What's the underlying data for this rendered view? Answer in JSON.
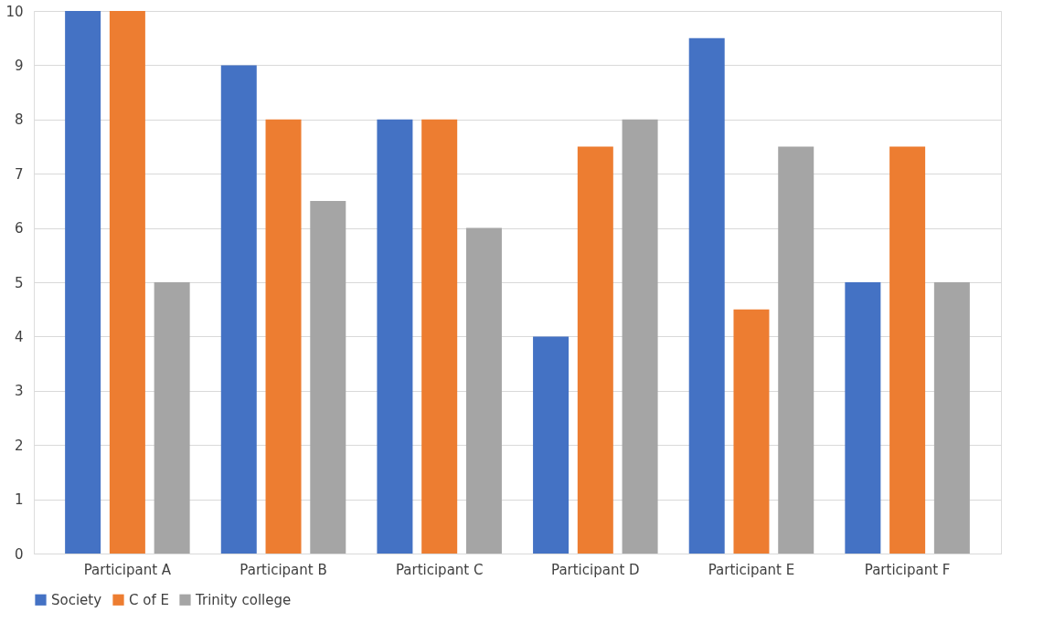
{
  "chart_data": {
    "type": "bar",
    "categories": [
      "Participant A",
      "Participant B",
      "Participant C",
      "Participant D",
      "Participant E",
      "Participant F"
    ],
    "series": [
      {
        "name": "Society",
        "color": "#4472c4",
        "values": [
          10,
          9,
          8,
          4,
          9.5,
          5
        ]
      },
      {
        "name": "C of E",
        "color": "#ed7d31",
        "values": [
          10,
          8,
          8,
          7.5,
          4.5,
          7.5
        ]
      },
      {
        "name": "Trinity college",
        "color": "#a5a5a5",
        "values": [
          5,
          6.5,
          6,
          8,
          7.5,
          5
        ]
      }
    ],
    "ylim": [
      0,
      10
    ],
    "yticks": [
      0,
      1,
      2,
      3,
      4,
      5,
      6,
      7,
      8,
      9,
      10
    ],
    "grid": "y",
    "legend": "bottom"
  }
}
